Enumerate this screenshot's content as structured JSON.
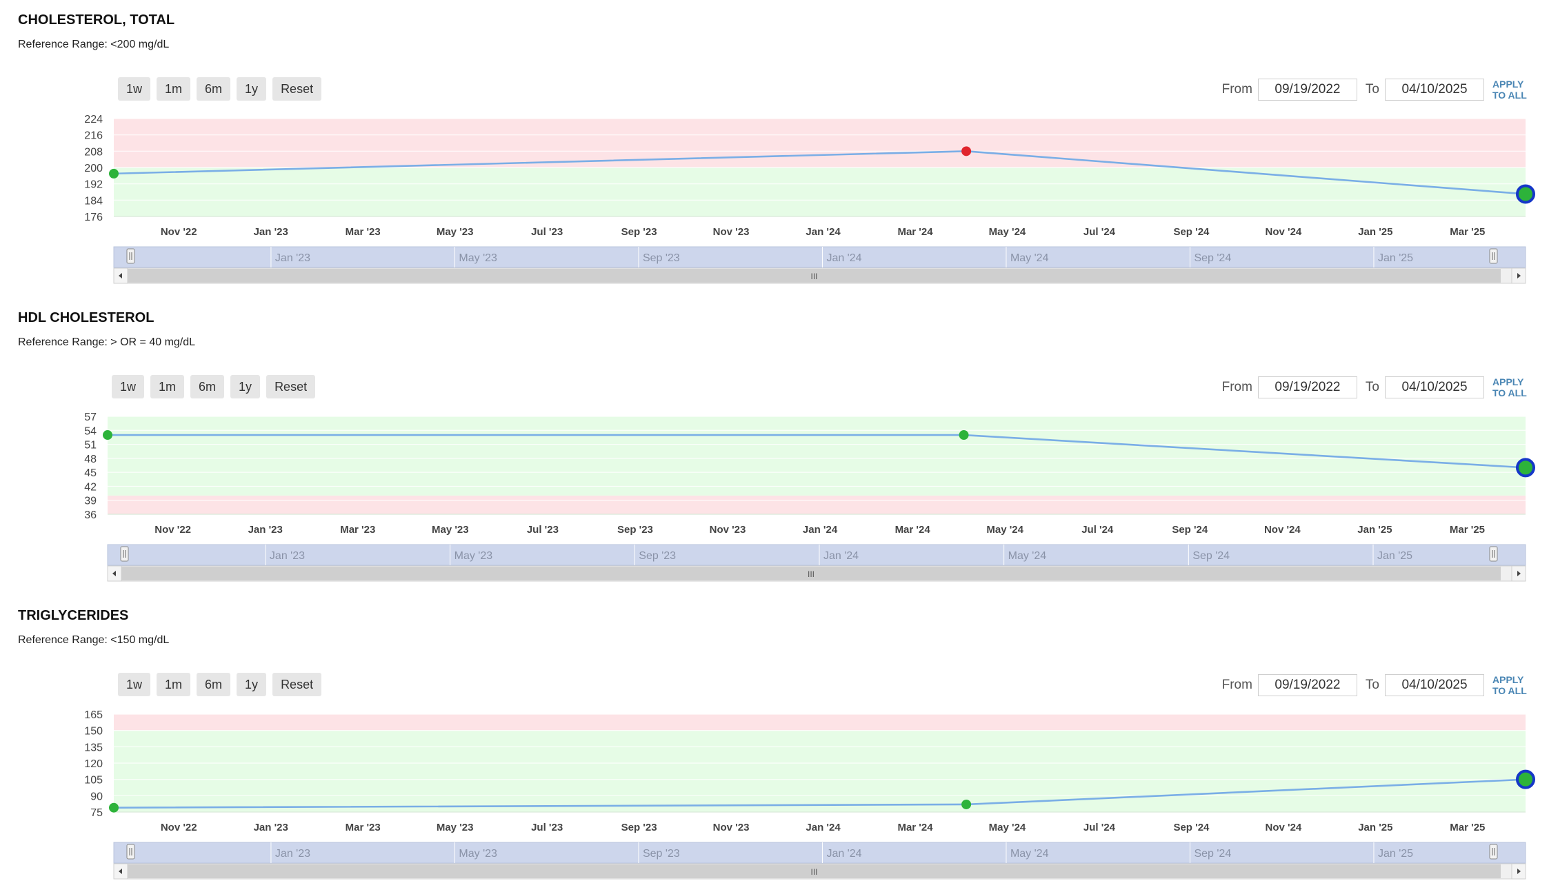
{
  "controls": {
    "range_buttons": [
      "1w",
      "1m",
      "6m",
      "1y",
      "Reset"
    ],
    "from_label": "From",
    "to_label": "To",
    "apply_label_line1": "APPLY",
    "apply_label_line2": "TO ALL",
    "scroll_grip": "III",
    "from_date": "09/19/2022",
    "to_date": "04/10/2025"
  },
  "colors": {
    "line": "#7aaee6",
    "normal_band": "#e6fce6",
    "abnormal_band": "#fde3e6",
    "normal_point": "#2db33a",
    "abnormal_point": "#e0252d",
    "latest_ring": "#1537c8",
    "navigator": "#cdd6ec"
  },
  "x_ticks": [
    "Nov '22",
    "Jan '23",
    "Mar '23",
    "May '23",
    "Jul '23",
    "Sep '23",
    "Nov '23",
    "Jan '24",
    "Mar '24",
    "May '24",
    "Jul '24",
    "Sep '24",
    "Nov '24",
    "Jan '25",
    "Mar '25"
  ],
  "navigator_ticks": [
    "Jan '23",
    "May '23",
    "Sep '23",
    "Jan '24",
    "May '24",
    "Sep '24",
    "Jan '25"
  ],
  "chart_data": [
    {
      "type": "line",
      "title": "CHOLESTEROL, TOTAL",
      "subtitle": "Reference Range: <200 mg/dL",
      "x": [
        "2022-09-19",
        "2024-04-05",
        "2025-04-10"
      ],
      "values": [
        197,
        208,
        187
      ],
      "flags": [
        "normal",
        "high",
        "normal"
      ],
      "ylim": [
        176,
        224
      ],
      "yticks": [
        176,
        184,
        192,
        200,
        208,
        216,
        224
      ],
      "normal_range": [
        176,
        200
      ],
      "grid": true
    },
    {
      "type": "line",
      "title": "HDL CHOLESTEROL",
      "subtitle": "Reference Range: > OR = 40 mg/dL",
      "x": [
        "2022-09-19",
        "2024-04-05",
        "2025-04-10"
      ],
      "values": [
        53,
        53,
        46
      ],
      "flags": [
        "normal",
        "normal",
        "normal"
      ],
      "ylim": [
        36,
        57
      ],
      "yticks": [
        36,
        39,
        42,
        45,
        48,
        51,
        54,
        57
      ],
      "normal_range": [
        40,
        57
      ],
      "grid": true
    },
    {
      "type": "line",
      "title": "TRIGLYCERIDES",
      "subtitle": "Reference Range: <150 mg/dL",
      "x": [
        "2022-09-19",
        "2024-04-05",
        "2025-04-10"
      ],
      "values": [
        79,
        82,
        105
      ],
      "flags": [
        "normal",
        "normal",
        "normal"
      ],
      "ylim": [
        75,
        165
      ],
      "yticks": [
        75,
        90,
        105,
        120,
        135,
        150,
        165
      ],
      "normal_range": [
        75,
        150
      ],
      "grid": true
    }
  ]
}
